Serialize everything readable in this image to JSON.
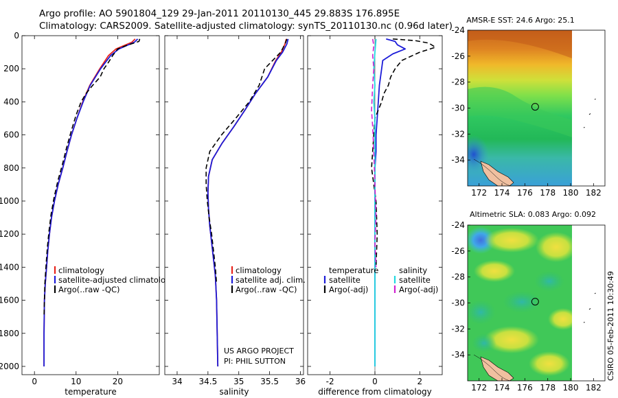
{
  "header": {
    "line1": "Argo profile: AO 5901804_129 29-Jan-2011 20110130_445 29.883S 176.895E",
    "line2": "Climatology: CARS2009. Satellite-adjusted climatology: synTS_20110130.nc (0.96d later)"
  },
  "footer": {
    "project": "US ARGO PROJECT",
    "pi": "PI: PHIL SUTTON",
    "credit": "CSIRO 05-Feb-2011 10:30:49"
  },
  "colors": {
    "climatology": "#e8231b",
    "satellite": "#1b1bd8",
    "argo": "#000000",
    "salinity_satellite": "#22d8e0",
    "salinity_argo": "#d020d0"
  },
  "chart_data": [
    {
      "type": "line",
      "name": "temperature-profile",
      "xlabel": "temperature",
      "xlim": [
        -3,
        30
      ],
      "ylim": [
        2050,
        0
      ],
      "xticks": [
        0,
        10,
        20
      ],
      "yticks": [
        0,
        200,
        400,
        600,
        800,
        1000,
        1200,
        1400,
        1600,
        1800,
        2000
      ],
      "legend": [
        "climatology",
        "satellite-adjusted climatology",
        "Argo(..raw -QC)"
      ],
      "legend_position": "lower-right",
      "series": [
        {
          "name": "climatology",
          "x": [
            24.2,
            23.4,
            19.6,
            17.8,
            15.7,
            13.3,
            11.6,
            10.2,
            8.9,
            7.8,
            6.8,
            5.7,
            4.8,
            4.1,
            3.6,
            3.2,
            2.9,
            2.6,
            2.4,
            2.3,
            2.3
          ],
          "y": [
            20,
            40,
            80,
            120,
            200,
            300,
            400,
            500,
            600,
            700,
            800,
            900,
            1000,
            1100,
            1200,
            1300,
            1400,
            1500,
            1600,
            1800,
            2000
          ]
        },
        {
          "name": "satellite-adjusted",
          "x": [
            24.8,
            24.0,
            20.3,
            18.3,
            15.9,
            13.4,
            11.7,
            10.2,
            8.9,
            7.8,
            6.8,
            5.7,
            4.8,
            4.1,
            3.6,
            3.2,
            2.9,
            2.6,
            2.4,
            2.3,
            2.3
          ],
          "y": [
            20,
            40,
            80,
            120,
            200,
            300,
            400,
            500,
            600,
            700,
            800,
            900,
            1000,
            1100,
            1200,
            1300,
            1400,
            1500,
            1600,
            1800,
            2000
          ]
        },
        {
          "name": "Argo(..raw -QC)",
          "x": [
            25.3,
            25.1,
            22.0,
            20.0,
            18.8,
            17.8,
            16.7,
            15.8,
            14.0,
            12.4,
            11.2,
            10.0,
            8.8,
            7.7,
            6.7,
            5.6,
            4.7,
            4.0,
            3.5,
            3.1,
            2.8,
            2.5,
            2.4,
            2.3
          ],
          "y": [
            20,
            35,
            60,
            80,
            120,
            160,
            200,
            250,
            300,
            350,
            400,
            480,
            580,
            680,
            780,
            880,
            980,
            1080,
            1180,
            1280,
            1380,
            1500,
            1600,
            1700
          ]
        }
      ]
    },
    {
      "type": "line",
      "name": "salinity-profile",
      "xlabel": "salinity",
      "xlim": [
        33.8,
        36.05
      ],
      "ylim": [
        2050,
        0
      ],
      "xticks": [
        34,
        34.5,
        35,
        35.5,
        36
      ],
      "legend": [
        "climatology",
        "satellite adj. clim.",
        "Argo(..raw -QC)"
      ],
      "legend_position": "lower-right",
      "series": [
        {
          "name": "climatology",
          "x": [
            35.77,
            35.75,
            35.69,
            35.6,
            35.47,
            35.27,
            35.1,
            34.92,
            34.73,
            34.57,
            34.51,
            34.5,
            34.51,
            34.53,
            34.56,
            34.59,
            34.62,
            34.64,
            34.65,
            34.66
          ],
          "y": [
            20,
            50,
            100,
            150,
            250,
            350,
            450,
            550,
            650,
            750,
            850,
            950,
            1050,
            1150,
            1250,
            1350,
            1450,
            1600,
            1800,
            2000
          ]
        },
        {
          "name": "satellite adj.",
          "x": [
            35.8,
            35.78,
            35.71,
            35.61,
            35.47,
            35.27,
            35.1,
            34.92,
            34.73,
            34.57,
            34.51,
            34.5,
            34.51,
            34.53,
            34.56,
            34.59,
            34.62,
            34.64,
            34.65,
            34.66
          ],
          "y": [
            20,
            50,
            100,
            150,
            250,
            350,
            450,
            550,
            650,
            750,
            850,
            950,
            1050,
            1150,
            1250,
            1350,
            1450,
            1600,
            1800,
            2000
          ]
        },
        {
          "name": "Argo(..raw -QC)",
          "x": [
            35.78,
            35.75,
            35.68,
            35.55,
            35.42,
            35.33,
            35.17,
            34.95,
            34.72,
            34.53,
            34.47,
            34.47,
            34.49,
            34.52,
            34.56,
            34.59,
            34.62,
            34.64
          ],
          "y": [
            20,
            50,
            100,
            150,
            200,
            300,
            400,
            500,
            600,
            700,
            800,
            900,
            1000,
            1100,
            1200,
            1300,
            1400,
            1500
          ]
        }
      ]
    },
    {
      "type": "line",
      "name": "difference-profile",
      "xlabel": "difference from climatology",
      "xlim": [
        -3,
        3
      ],
      "ylim": [
        2050,
        0
      ],
      "xticks": [
        -2,
        0,
        2
      ],
      "legend": [
        "temperature",
        "satellite",
        "Argo(-adj)",
        "salinity",
        "satellite",
        "Argo(-adj)"
      ],
      "legend_position": "lower",
      "series": [
        {
          "name": "temperature satellite",
          "x": [
            0.5,
            0.9,
            1.0,
            1.35,
            0.8,
            0.35,
            0.3,
            0.2,
            0.15,
            0.1,
            0.05,
            0.05,
            0.0,
            0.0,
            0.0,
            0.0,
            0.0
          ],
          "y": [
            20,
            35,
            55,
            80,
            110,
            150,
            200,
            300,
            400,
            500,
            600,
            700,
            800,
            1000,
            1300,
            1600,
            2000
          ]
        },
        {
          "name": "temperature Argo(-adj)",
          "x": [
            0.8,
            1.8,
            2.4,
            2.7,
            2.0,
            1.2,
            0.9,
            0.7,
            0.6,
            0.4,
            0.3,
            0.15,
            0.0,
            -0.05,
            -0.1,
            -0.15,
            -0.05,
            0.05,
            0.1,
            0.05
          ],
          "y": [
            20,
            30,
            45,
            70,
            100,
            150,
            200,
            250,
            300,
            350,
            400,
            450,
            500,
            600,
            700,
            800,
            900,
            1000,
            1200,
            1400
          ]
        },
        {
          "name": "salinity satellite",
          "x": [
            0.05,
            0.0,
            -0.05,
            0.0,
            -0.05,
            0.0,
            0.0,
            0.0,
            0.0,
            0.0
          ],
          "y": [
            20,
            100,
            200,
            300,
            400,
            500,
            700,
            1000,
            1500,
            2000
          ]
        },
        {
          "name": "salinity Argo(-adj)",
          "x": [
            -0.1,
            -0.05,
            -0.1,
            -0.05,
            -0.1,
            -0.15,
            -0.1,
            -0.05,
            0.0,
            0.05,
            0.0,
            0.05
          ],
          "y": [
            20,
            60,
            120,
            200,
            300,
            450,
            550,
            700,
            900,
            1100,
            1250,
            1400
          ]
        }
      ]
    },
    {
      "type": "heatmap",
      "name": "sst-map",
      "title": "AMSR-E SST: 24.6 Argo: 25.1",
      "xlim": [
        171,
        183
      ],
      "ylim": [
        -36,
        -24
      ],
      "xticks": [
        172,
        174,
        176,
        178,
        180,
        182
      ],
      "yticks": [
        -24,
        -26,
        -28,
        -30,
        -32,
        -34
      ],
      "marker": {
        "lon": 176.9,
        "lat": -29.9
      }
    },
    {
      "type": "heatmap",
      "name": "sla-map",
      "title": "Altimetric SLA: 0.083 Argo: 0.092",
      "xlim": [
        171,
        183
      ],
      "ylim": [
        -36,
        -24
      ],
      "xticks": [
        172,
        174,
        176,
        178,
        180,
        182
      ],
      "yticks": [
        -24,
        -26,
        -28,
        -30,
        -32,
        -34
      ],
      "marker": {
        "lon": 176.9,
        "lat": -29.9
      }
    }
  ]
}
